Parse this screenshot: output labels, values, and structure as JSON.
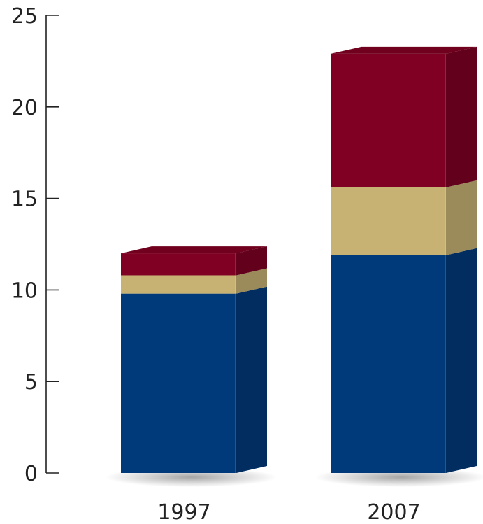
{
  "chart_data": {
    "type": "bar",
    "stacked": true,
    "style": "3d",
    "categories": [
      "1997",
      "2007"
    ],
    "series": [
      {
        "values": [
          9.8,
          11.9
        ],
        "color": "#013a7b"
      },
      {
        "values": [
          1.0,
          3.7
        ],
        "color": "#c8b273"
      },
      {
        "values": [
          1.2,
          7.3
        ],
        "color": "#7f0022"
      }
    ],
    "ylim": [
      0,
      25
    ],
    "yticks": [
      0,
      5,
      10,
      15,
      20,
      25
    ],
    "grid": false,
    "legend": "none"
  }
}
